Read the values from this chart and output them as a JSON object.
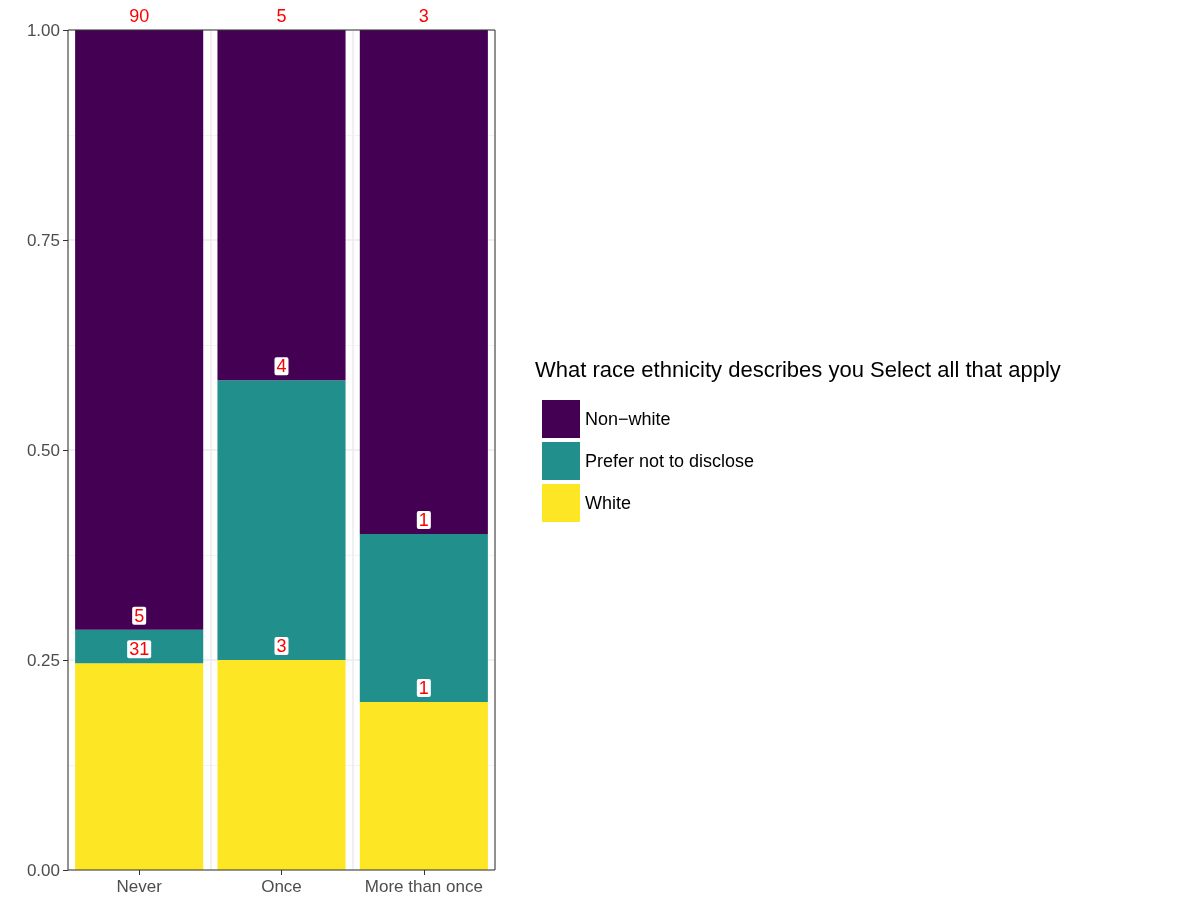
{
  "chart_data": {
    "type": "bar",
    "stacked": true,
    "categories": [
      "Never",
      "Once",
      "More than once"
    ],
    "series": [
      {
        "name": "White",
        "color": "#fde725",
        "values": [
          0.246,
          0.25,
          0.2
        ]
      },
      {
        "name": "Prefer not to disclose",
        "color": "#21908c",
        "values": [
          0.04,
          0.333,
          0.2
        ]
      },
      {
        "name": "Non−white",
        "color": "#440154",
        "values": [
          0.714,
          0.417,
          0.6
        ]
      }
    ],
    "annotations": [
      {
        "text": "31",
        "x": "Never",
        "y": 0.246
      },
      {
        "text": "5",
        "x": "Never",
        "y": 0.286
      },
      {
        "text": "90",
        "x": "Never",
        "y": 1
      },
      {
        "text": "3",
        "x": "Once",
        "y": 0.25
      },
      {
        "text": "4",
        "x": "Once",
        "y": 0.583
      },
      {
        "text": "5",
        "x": "Once",
        "y": 1
      },
      {
        "text": "1",
        "x": "More than once",
        "y": 0.2
      },
      {
        "text": "1",
        "x": "More than once",
        "y": 0.4
      },
      {
        "text": "3",
        "x": "More than once",
        "y": 1
      }
    ],
    "ylim": [
      0,
      1
    ],
    "yticks": [
      {
        "value": 0,
        "label": "0.00"
      },
      {
        "value": 0.25,
        "label": "0.25"
      },
      {
        "value": 0.5,
        "label": "0.50"
      },
      {
        "value": 0.75,
        "label": "0.75"
      },
      {
        "value": 1,
        "label": "1.00"
      }
    ],
    "grid": true,
    "legend": "right",
    "legend_title": "What race ethnicity describes you Select all that apply"
  }
}
